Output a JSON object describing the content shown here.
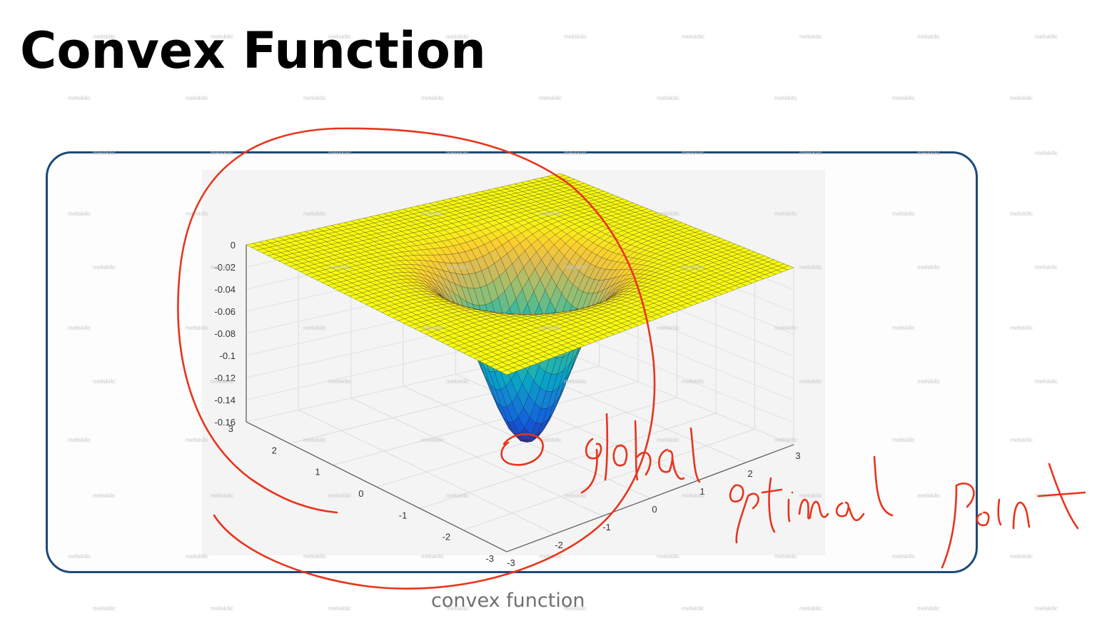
{
  "slide": {
    "title": "Convex Function",
    "caption": "convex function",
    "watermark": "meliskilic"
  },
  "annotation": {
    "color": "#e8341c",
    "handwritten_text": "global optimal point"
  },
  "chart_data": {
    "type": "surface",
    "title": "",
    "xlabel": "",
    "ylabel": "",
    "zlabel": "",
    "x_range": [
      -3,
      3
    ],
    "y_range": [
      -3,
      3
    ],
    "z_range": [
      -0.16,
      0
    ],
    "z_ticks": [
      "0",
      "-0.02",
      "-0.04",
      "-0.06",
      "-0.08",
      "-0.1",
      "-0.12",
      "-0.14",
      "-0.16"
    ],
    "x_ticks": [
      "-3",
      "-2",
      "-1",
      "0",
      "1",
      "2",
      "3"
    ],
    "y_ticks": [
      "-3",
      "-2",
      "-1",
      "0",
      "1",
      "2",
      "3"
    ],
    "minimum": {
      "x": 0,
      "y": 0,
      "z": -0.16
    },
    "colormap": "parula",
    "grid": true
  }
}
